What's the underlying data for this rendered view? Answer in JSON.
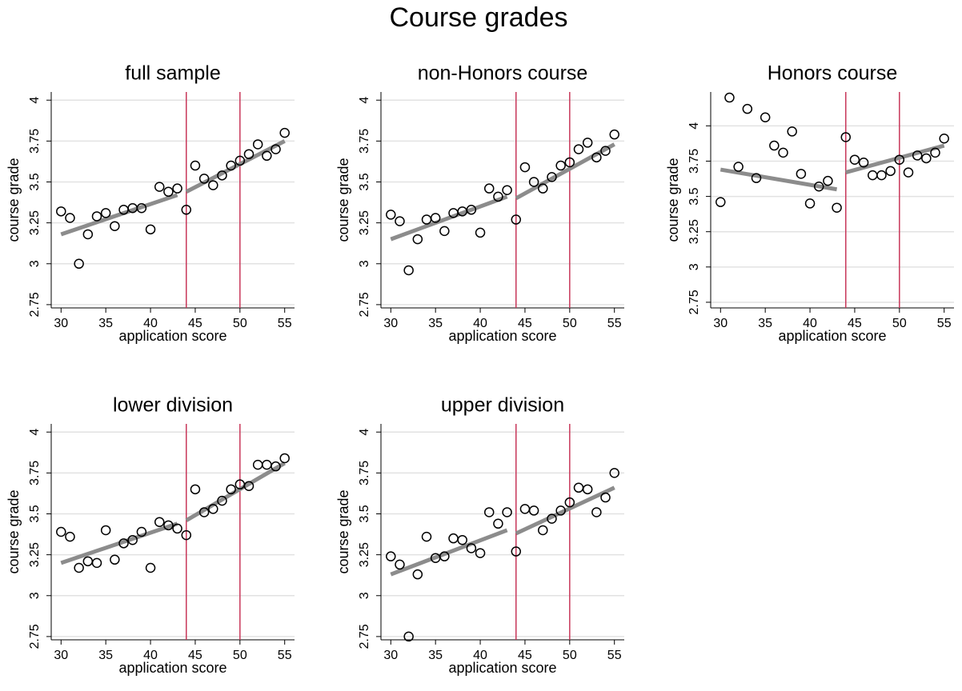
{
  "title": "Course grades",
  "chart_data": [
    {
      "type": "scatter",
      "title": "full sample",
      "xlabel": "application score",
      "ylabel": "course grade",
      "x": [
        30,
        31,
        32,
        33,
        34,
        35,
        36,
        37,
        38,
        39,
        40,
        41,
        42,
        43,
        44,
        45,
        46,
        47,
        48,
        49,
        50,
        51,
        52,
        53,
        54,
        55
      ],
      "values": [
        3.32,
        3.28,
        3.0,
        3.18,
        3.29,
        3.31,
        3.23,
        3.33,
        3.34,
        3.34,
        3.21,
        3.47,
        3.44,
        3.46,
        3.33,
        3.6,
        3.52,
        3.48,
        3.54,
        3.6,
        3.63,
        3.67,
        3.73,
        3.66,
        3.7,
        3.8
      ],
      "fit_lines": [
        {
          "x": [
            30,
            43
          ],
          "values": [
            3.18,
            3.42
          ]
        },
        {
          "x": [
            44,
            55
          ],
          "values": [
            3.44,
            3.75
          ]
        }
      ],
      "vlines": [
        44,
        50
      ],
      "color": "#000000",
      "fit_color": "#8c8c8c",
      "vline_color": "#c8385a",
      "xlim": [
        28.9,
        56.1
      ],
      "xticks": [
        30,
        35,
        40,
        45,
        50,
        55
      ],
      "ylim": [
        2.73,
        4.05
      ],
      "yticks": [
        2.75,
        3,
        3.25,
        3.5,
        3.75,
        4
      ],
      "grid": true
    },
    {
      "type": "scatter",
      "title": "non-Honors course",
      "xlabel": "application score",
      "ylabel": "course grade",
      "x": [
        30,
        31,
        32,
        33,
        34,
        35,
        36,
        37,
        38,
        39,
        40,
        41,
        42,
        43,
        44,
        45,
        46,
        47,
        48,
        49,
        50,
        51,
        52,
        53,
        54,
        55
      ],
      "values": [
        3.3,
        3.26,
        2.96,
        3.15,
        3.27,
        3.28,
        3.2,
        3.31,
        3.32,
        3.33,
        3.19,
        3.46,
        3.41,
        3.45,
        3.27,
        3.59,
        3.5,
        3.46,
        3.53,
        3.6,
        3.62,
        3.7,
        3.74,
        3.65,
        3.69,
        3.79
      ],
      "fit_lines": [
        {
          "x": [
            30,
            43
          ],
          "values": [
            3.15,
            3.41
          ]
        },
        {
          "x": [
            44,
            55
          ],
          "values": [
            3.4,
            3.73
          ]
        }
      ],
      "vlines": [
        44,
        50
      ],
      "color": "#000000",
      "fit_color": "#8c8c8c",
      "vline_color": "#c8385a",
      "xlim": [
        28.9,
        56.1
      ],
      "xticks": [
        30,
        35,
        40,
        45,
        50,
        55
      ],
      "ylim": [
        2.73,
        4.05
      ],
      "yticks": [
        2.75,
        3,
        3.25,
        3.5,
        3.75,
        4
      ],
      "grid": true
    },
    {
      "type": "scatter",
      "title": "Honors course",
      "xlabel": "application score",
      "ylabel": "course grade",
      "x": [
        30,
        31,
        32,
        33,
        34,
        35,
        36,
        37,
        38,
        39,
        40,
        41,
        42,
        43,
        44,
        45,
        46,
        47,
        48,
        49,
        50,
        51,
        52,
        53,
        54,
        55
      ],
      "values": [
        3.46,
        4.2,
        3.71,
        4.12,
        3.63,
        4.06,
        3.86,
        3.81,
        3.96,
        3.66,
        3.45,
        3.57,
        3.61,
        3.42,
        3.92,
        3.76,
        3.74,
        3.65,
        3.65,
        3.68,
        3.76,
        3.67,
        3.79,
        3.77,
        3.81,
        3.91
      ],
      "fit_lines": [
        {
          "x": [
            30,
            43
          ],
          "values": [
            3.69,
            3.55
          ]
        },
        {
          "x": [
            44,
            55
          ],
          "values": [
            3.67,
            3.86
          ]
        }
      ],
      "vlines": [
        44,
        50
      ],
      "color": "#000000",
      "fit_color": "#8c8c8c",
      "vline_color": "#c8385a",
      "xlim": [
        28.9,
        56.1
      ],
      "xticks": [
        30,
        35,
        40,
        45,
        50,
        55
      ],
      "ylim": [
        2.71,
        4.24
      ],
      "yticks": [
        2.75,
        3,
        3.25,
        3.5,
        3.75,
        4
      ],
      "grid": true
    },
    {
      "type": "scatter",
      "title": "lower division",
      "xlabel": "application score",
      "ylabel": "course grade",
      "x": [
        30,
        31,
        32,
        33,
        34,
        35,
        36,
        37,
        38,
        39,
        40,
        41,
        42,
        43,
        44,
        45,
        46,
        47,
        48,
        49,
        50,
        51,
        52,
        53,
        54,
        55
      ],
      "values": [
        3.39,
        3.36,
        3.17,
        3.21,
        3.2,
        3.4,
        3.22,
        3.32,
        3.34,
        3.39,
        3.17,
        3.45,
        3.43,
        3.41,
        3.37,
        3.65,
        3.51,
        3.53,
        3.58,
        3.65,
        3.68,
        3.67,
        3.8,
        3.8,
        3.79,
        3.84
      ],
      "fit_lines": [
        {
          "x": [
            30,
            43
          ],
          "values": [
            3.2,
            3.44
          ]
        },
        {
          "x": [
            44,
            55
          ],
          "values": [
            3.46,
            3.81
          ]
        }
      ],
      "vlines": [
        44,
        50
      ],
      "color": "#000000",
      "fit_color": "#8c8c8c",
      "vline_color": "#c8385a",
      "xlim": [
        28.9,
        56.1
      ],
      "xticks": [
        30,
        35,
        40,
        45,
        50,
        55
      ],
      "ylim": [
        2.73,
        4.05
      ],
      "yticks": [
        2.75,
        3,
        3.25,
        3.5,
        3.75,
        4
      ],
      "grid": true
    },
    {
      "type": "scatter",
      "title": "upper division",
      "xlabel": "application score",
      "ylabel": "course grade",
      "x": [
        30,
        31,
        32,
        33,
        34,
        35,
        36,
        37,
        38,
        39,
        40,
        41,
        42,
        43,
        44,
        45,
        46,
        47,
        48,
        49,
        50,
        51,
        52,
        53,
        54,
        55
      ],
      "values": [
        3.24,
        3.19,
        2.75,
        3.13,
        3.36,
        3.23,
        3.24,
        3.35,
        3.34,
        3.29,
        3.26,
        3.51,
        3.44,
        3.51,
        3.27,
        3.53,
        3.52,
        3.4,
        3.47,
        3.52,
        3.57,
        3.66,
        3.65,
        3.51,
        3.6,
        3.75
      ],
      "fit_lines": [
        {
          "x": [
            30,
            43
          ],
          "values": [
            3.13,
            3.4
          ]
        },
        {
          "x": [
            44,
            55
          ],
          "values": [
            3.38,
            3.66
          ]
        }
      ],
      "vlines": [
        44,
        50
      ],
      "color": "#000000",
      "fit_color": "#8c8c8c",
      "vline_color": "#c8385a",
      "xlim": [
        28.9,
        56.1
      ],
      "xticks": [
        30,
        35,
        40,
        45,
        50,
        55
      ],
      "ylim": [
        2.73,
        4.05
      ],
      "yticks": [
        2.75,
        3,
        3.25,
        3.5,
        3.75,
        4
      ],
      "grid": true
    }
  ]
}
